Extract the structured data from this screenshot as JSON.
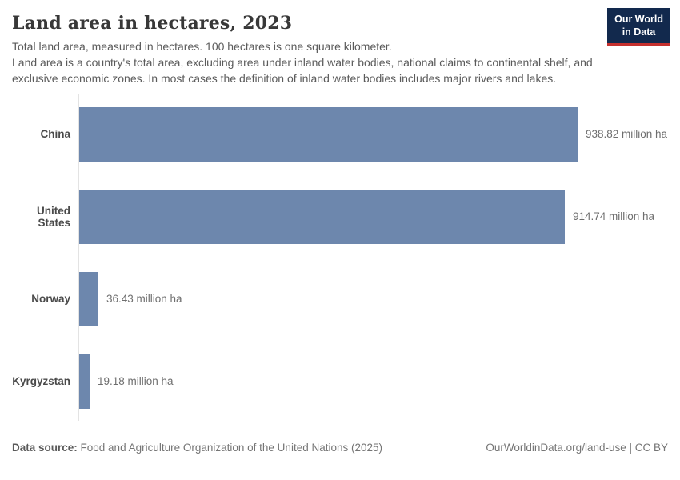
{
  "header": {
    "title": "Land area in hectares, 2023",
    "subtitle_line1": "Total land area, measured in hectares. 100 hectares is one square kilometer.",
    "subtitle_line2": "Land area is a country's total area, excluding area under inland water bodies, national claims to continental shelf, and exclusive economic zones. In most cases the definition of inland water bodies includes major rivers and lakes.",
    "logo": {
      "line1": "Our World",
      "line2": "in Data",
      "bg_color": "#12294d",
      "accent_color": "#c5302e"
    }
  },
  "chart_data": {
    "type": "bar",
    "orientation": "horizontal",
    "categories": [
      "China",
      "United States",
      "Norway",
      "Kyrgyzstan"
    ],
    "values": [
      938.82,
      914.74,
      36.43,
      19.18
    ],
    "value_labels": [
      "938.82 million ha",
      "914.74 million ha",
      "36.43 million ha",
      "19.18 million ha"
    ],
    "unit": "million ha",
    "title": "Land area in hectares, 2023",
    "xlabel": "",
    "ylabel": "",
    "xlim": [
      0,
      938.82
    ],
    "grid": false,
    "legend": false,
    "bar_color": "#6d87ad"
  },
  "footer": {
    "source_label": "Data source:",
    "source_text": " Food and Agriculture Organization of the United Nations (2025)",
    "right_text": "OurWorldinData.org/land-use | CC BY"
  }
}
